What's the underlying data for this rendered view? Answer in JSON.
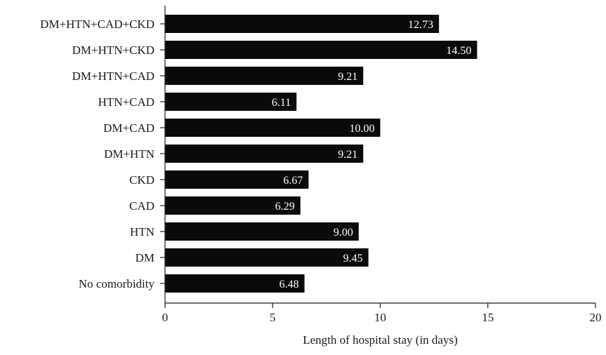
{
  "chart_data": {
    "type": "bar",
    "orientation": "horizontal",
    "categories": [
      "DM+HTN+CAD+CKD",
      "DM+HTN+CKD",
      "DM+HTN+CAD",
      "HTN+CAD",
      "DM+CAD",
      "DM+HTN",
      "CKD",
      "CAD",
      "HTN",
      "DM",
      "No comorbidity"
    ],
    "values": [
      12.73,
      14.5,
      9.21,
      6.11,
      10.0,
      9.21,
      6.67,
      6.29,
      9.0,
      9.45,
      6.48
    ],
    "value_labels": [
      "12.73",
      "14.50",
      "9.21",
      "6.11",
      "10.00",
      "9.21",
      "6.67",
      "6.29",
      "9.00",
      "9.45",
      "6.48"
    ],
    "xlabel": "Length of hospital stay (in days)",
    "ylabel": "",
    "xlim": [
      0,
      20
    ],
    "xticks": [
      0,
      5,
      10,
      15,
      20
    ],
    "xtick_labels": [
      "0",
      "5",
      "10",
      "15",
      "20"
    ],
    "grid": false,
    "bar_color": "#0a0a0a",
    "label_color": "#ffffff"
  }
}
